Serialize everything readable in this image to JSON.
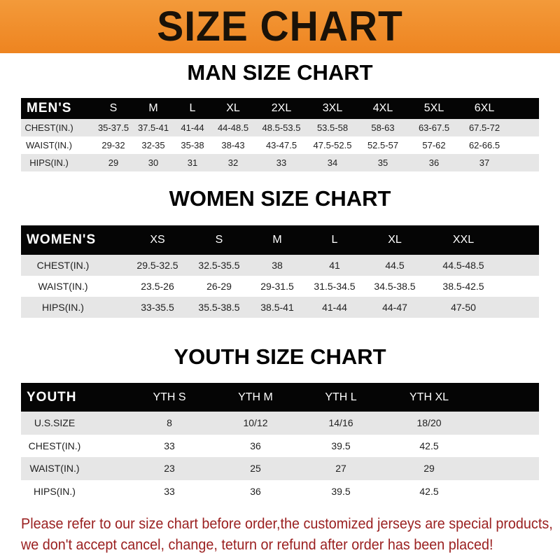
{
  "title": "SIZE CHART",
  "colors": {
    "banner": "#ef8a28",
    "header_row": "#050505",
    "stripe": "#e6e6e6",
    "note": "#9a1f1f"
  },
  "men": {
    "title": "MAN SIZE CHART",
    "header": [
      "MEN'S",
      "S",
      "M",
      "L",
      "XL",
      "2XL",
      "3XL",
      "4XL",
      "5XL",
      "6XL"
    ],
    "rows": [
      [
        "CHEST(IN.)",
        "35-37.5",
        "37.5-41",
        "41-44",
        "44-48.5",
        "48.5-53.5",
        "53.5-58",
        "58-63",
        "63-67.5",
        "67.5-72"
      ],
      [
        "WAIST(IN.)",
        "29-32",
        "32-35",
        "35-38",
        "38-43",
        "43-47.5",
        "47.5-52.5",
        "52.5-57",
        "57-62",
        "62-66.5"
      ],
      [
        "HIPS(IN.)",
        "29",
        "30",
        "31",
        "32",
        "33",
        "34",
        "35",
        "36",
        "37"
      ]
    ]
  },
  "women": {
    "title": "WOMEN SIZE CHART",
    "header": [
      "WOMEN'S",
      "XS",
      "S",
      "M",
      "L",
      "XL",
      "XXL"
    ],
    "rows": [
      [
        "CHEST(IN.)",
        "29.5-32.5",
        "32.5-35.5",
        "38",
        "41",
        "44.5",
        "44.5-48.5"
      ],
      [
        "WAIST(IN.)",
        "23.5-26",
        "26-29",
        "29-31.5",
        "31.5-34.5",
        "34.5-38.5",
        "38.5-42.5"
      ],
      [
        "HIPS(IN.)",
        "33-35.5",
        "35.5-38.5",
        "38.5-41",
        "41-44",
        "44-47",
        "47-50"
      ]
    ]
  },
  "youth": {
    "title": "YOUTH SIZE CHART",
    "header": [
      "YOUTH",
      "YTH S",
      "YTH M",
      "YTH L",
      "YTH XL"
    ],
    "rows": [
      [
        "U.S.SIZE",
        "8",
        "10/12",
        "14/16",
        "18/20"
      ],
      [
        "CHEST(IN.)",
        "33",
        "36",
        "39.5",
        "42.5"
      ],
      [
        "WAIST(IN.)",
        "23",
        "25",
        "27",
        "29"
      ],
      [
        "HIPS(IN.)",
        "33",
        "36",
        "39.5",
        "42.5"
      ]
    ]
  },
  "note": {
    "line1": "Please refer to our size chart before order,the customized jerseys are special products,",
    "line2": "we don't accept cancel, change, teturn or refund after order has been placed!"
  }
}
